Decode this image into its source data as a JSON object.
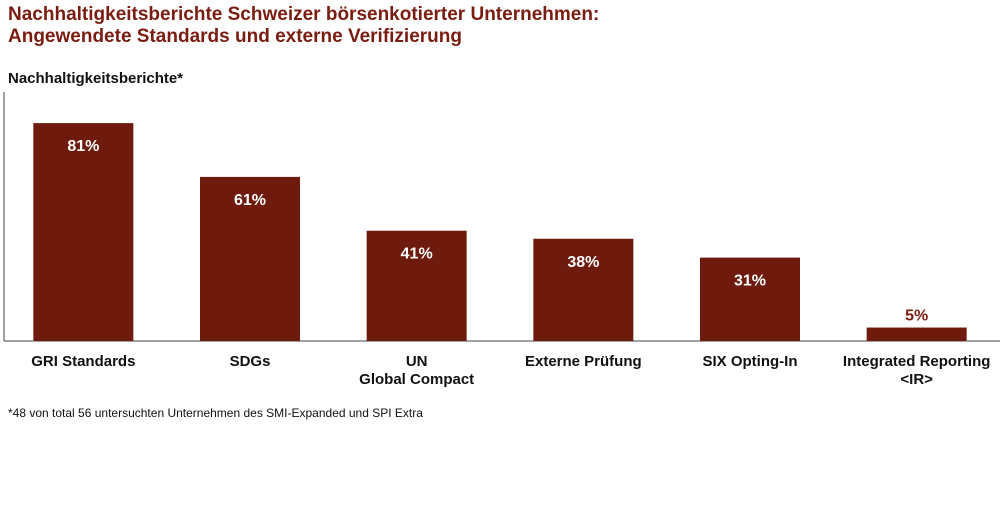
{
  "chart_data": {
    "type": "bar",
    "title": [
      "Nachhaltigkeitsberichte Schweizer börsenkotierter Unternehmen:",
      "Angewendete Standards und externe Verifizierung"
    ],
    "ylabel": "Nachhaltigkeitsberichte*",
    "xlabel": "",
    "categories": [
      [
        "GRI Standards"
      ],
      [
        "SDGs"
      ],
      [
        "UN",
        "Global Compact"
      ],
      [
        "Externe Prüfung"
      ],
      [
        "SIX Opting-In"
      ],
      [
        "Integrated Reporting",
        "<IR>"
      ]
    ],
    "values": [
      81,
      61,
      41,
      38,
      31,
      5
    ],
    "value_labels": [
      "81%",
      "61%",
      "41%",
      "38%",
      "31%",
      "5%"
    ],
    "ylim": [
      0,
      100
    ],
    "grid": false,
    "footnote": "*48 von total 56 untersuchten Unternehmen des SMI-Expanded und SPI Extra",
    "colors": {
      "bar": "#6e1a0c",
      "title": "#7a1c10",
      "label_inside": "#ffffff",
      "label_outside": "#7a1c10"
    }
  }
}
